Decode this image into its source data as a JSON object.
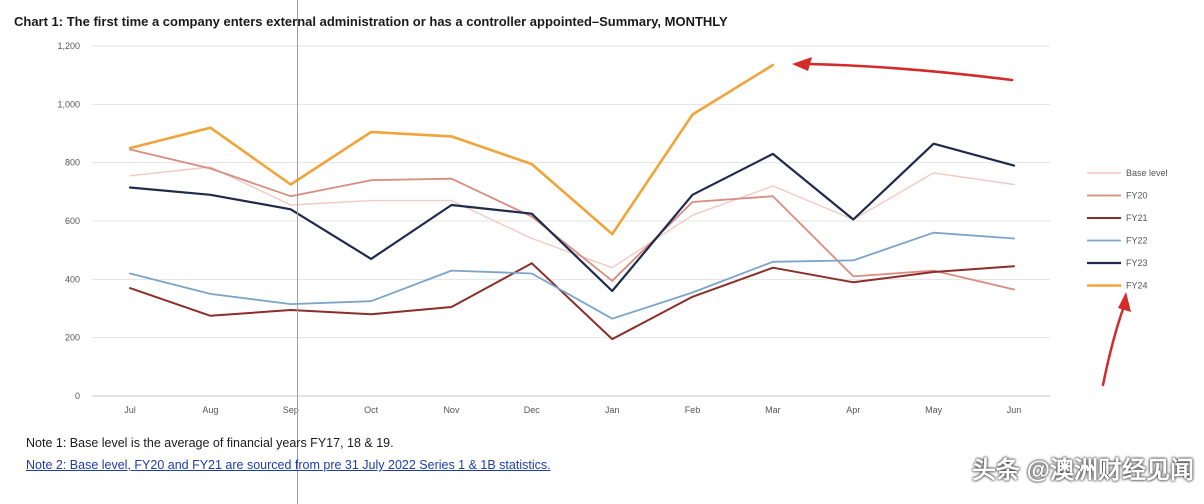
{
  "title": "Chart 1: The first time a company enters external administration or has a controller appointed–Summary, MONTHLY",
  "notes": {
    "note1": "Note 1: Base level is the average of financial years FY17, 18 & 19.",
    "note2": "Note 2: Base level, FY20 and FY21 are sourced from pre 31 July 2022 Series 1 & 1B statistics."
  },
  "watermark": "头条 @澳洲财经见闻",
  "annotation_color": "#d42a2a",
  "chart_data": {
    "type": "line",
    "categories": [
      "Jul",
      "Aug",
      "Sep",
      "Oct",
      "Nov",
      "Dec",
      "Jan",
      "Feb",
      "Mar",
      "Apr",
      "May",
      "Jun"
    ],
    "y_tick_labels": [
      "0",
      "200",
      "400",
      "600",
      "800",
      "1,000",
      "1,200"
    ],
    "ylim": [
      0,
      1200
    ],
    "grid": true,
    "legend_position": "right",
    "series": [
      {
        "name": "Base level",
        "color": "#f2c9c4",
        "width": 1.4,
        "values": [
          755,
          785,
          655,
          670,
          670,
          540,
          440,
          620,
          720,
          605,
          765,
          725
        ]
      },
      {
        "name": "FY20",
        "color": "#d98c80",
        "width": 1.8,
        "values": [
          845,
          780,
          685,
          740,
          745,
          615,
          395,
          665,
          685,
          410,
          430,
          365
        ]
      },
      {
        "name": "FY21",
        "color": "#8b2e2a",
        "width": 2,
        "values": [
          370,
          275,
          295,
          280,
          305,
          455,
          195,
          340,
          440,
          390,
          425,
          445
        ]
      },
      {
        "name": "FY22",
        "color": "#7ba4c9",
        "width": 1.8,
        "values": [
          420,
          350,
          315,
          325,
          430,
          420,
          265,
          355,
          460,
          465,
          560,
          540
        ]
      },
      {
        "name": "FY23",
        "color": "#1f2a4d",
        "width": 2.2,
        "values": [
          715,
          690,
          640,
          470,
          655,
          625,
          360,
          690,
          830,
          605,
          865,
          790
        ]
      },
      {
        "name": "FY24",
        "color": "#f0a43a",
        "width": 2.6,
        "values": [
          850,
          920,
          725,
          905,
          890,
          795,
          555,
          965,
          1135,
          null,
          null,
          null
        ]
      }
    ]
  }
}
